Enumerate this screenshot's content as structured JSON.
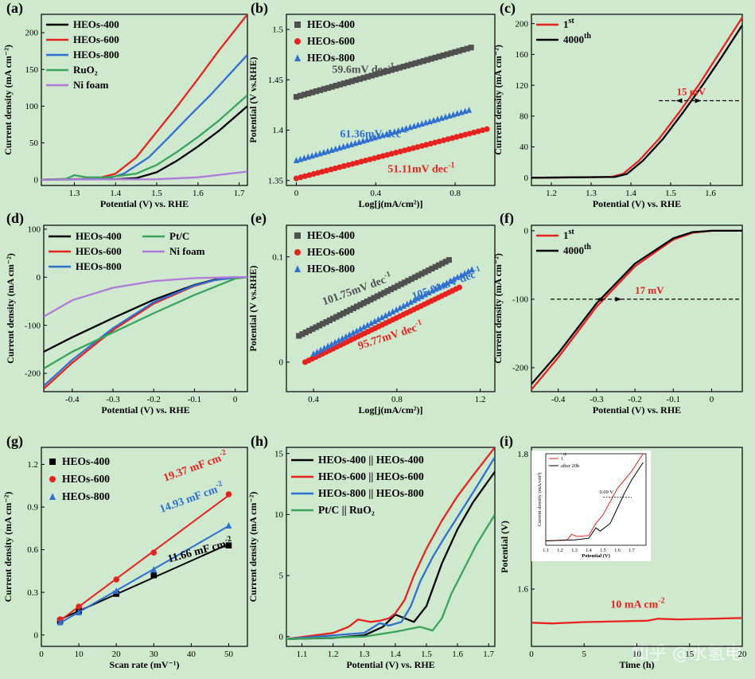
{
  "colors": {
    "background": "#cfe9cf",
    "black": "#000000",
    "red": "#e8231f",
    "blue": "#2f6fd0",
    "green": "#3aa55a",
    "purple": "#b07ad8",
    "gray": "#505050"
  },
  "chart_data": [
    {
      "id": "a",
      "panel_label": "(a)",
      "type": "line",
      "xlabel": "Potential (V) vs. RHE",
      "ylabel": "Current density (mA cm⁻²)",
      "xlim": [
        1.22,
        1.72
      ],
      "ylim": [
        -8,
        225
      ],
      "xticks": [
        1.3,
        1.4,
        1.5,
        1.6,
        1.7
      ],
      "yticks": [
        0,
        50,
        100,
        150,
        200
      ],
      "legend": {
        "position": "top-left"
      },
      "series": [
        {
          "name": "HEOs-400",
          "color": "black",
          "x": [
            1.22,
            1.4,
            1.45,
            1.5,
            1.55,
            1.6,
            1.65,
            1.72
          ],
          "y": [
            0,
            0.5,
            2,
            10,
            26,
            45,
            66,
            100
          ]
        },
        {
          "name": "HEOs-600",
          "color": "red",
          "x": [
            1.22,
            1.35,
            1.4,
            1.45,
            1.5,
            1.55,
            1.6,
            1.65,
            1.72
          ],
          "y": [
            0,
            1,
            8,
            30,
            65,
            100,
            137,
            175,
            225
          ]
        },
        {
          "name": "HEOs-800",
          "color": "blue",
          "x": [
            1.22,
            1.38,
            1.42,
            1.48,
            1.53,
            1.58,
            1.63,
            1.72
          ],
          "y": [
            0,
            1,
            8,
            30,
            58,
            87,
            115,
            170
          ]
        },
        {
          "name": "RuO₂",
          "color": "green",
          "x": [
            1.22,
            1.28,
            1.3,
            1.33,
            1.38,
            1.45,
            1.5,
            1.55,
            1.6,
            1.65,
            1.72
          ],
          "y": [
            0,
            1,
            6,
            3,
            3,
            8,
            20,
            38,
            58,
            80,
            115
          ]
        },
        {
          "name": "Ni foam",
          "color": "purple",
          "x": [
            1.22,
            1.5,
            1.6,
            1.72
          ],
          "y": [
            0,
            0.5,
            3,
            11
          ]
        }
      ]
    },
    {
      "id": "b",
      "panel_label": "(b)",
      "type": "scatter",
      "xlabel": "Log[j(mA/cm²)]",
      "ylabel": "Potential (V vs.RHE)",
      "xlim": [
        -0.05,
        1.0
      ],
      "ylim": [
        1.345,
        1.515
      ],
      "xticks": [
        0.0,
        0.4,
        0.8
      ],
      "yticks": [
        1.35,
        1.4,
        1.45,
        1.5
      ],
      "legend": {
        "position": "top-left"
      },
      "series": [
        {
          "name": "HEOs-400",
          "color": "gray",
          "marker": "square",
          "x0": 0.0,
          "y0": 1.433,
          "x1": 0.88,
          "y1": 1.482,
          "n": 45
        },
        {
          "name": "HEOs-600",
          "color": "red",
          "marker": "circle",
          "x0": 0.0,
          "y0": 1.352,
          "x1": 0.96,
          "y1": 1.401,
          "n": 45
        },
        {
          "name": "HEOs-800",
          "color": "blue",
          "marker": "triangle",
          "x0": 0.0,
          "y0": 1.37,
          "x1": 0.87,
          "y1": 1.42,
          "n": 45
        }
      ],
      "annotations": [
        {
          "text": "59.6mV dec",
          "sup": "-1",
          "color": "gray",
          "x": 0.18,
          "y": 1.457
        },
        {
          "text": "61.36mV dec",
          "sup": "-1",
          "color": "blue",
          "x": 0.22,
          "y": 1.393
        },
        {
          "text": "51.11mV dec",
          "sup": "-1",
          "color": "red",
          "x": 0.46,
          "y": 1.358
        }
      ]
    },
    {
      "id": "c",
      "panel_label": "(c)",
      "type": "line",
      "xlabel": "Potential (V) vs. RHE",
      "ylabel": "Current density (mA cm⁻²)",
      "xlim": [
        1.15,
        1.68
      ],
      "ylim": [
        -10,
        212
      ],
      "xticks": [
        1.2,
        1.3,
        1.4,
        1.5,
        1.6
      ],
      "yticks": [
        0,
        40,
        80,
        120,
        160,
        200
      ],
      "legend": {
        "position": "top-left"
      },
      "series": [
        {
          "name": "1",
          "sup": "st",
          "color": "red",
          "x": [
            1.15,
            1.35,
            1.38,
            1.42,
            1.47,
            1.52,
            1.57,
            1.62,
            1.68
          ],
          "y": [
            0,
            1,
            5,
            22,
            50,
            84,
            120,
            160,
            208
          ]
        },
        {
          "name": "4000",
          "sup": "th",
          "color": "black",
          "x": [
            1.15,
            1.36,
            1.39,
            1.43,
            1.48,
            1.53,
            1.58,
            1.63,
            1.68
          ],
          "y": [
            0,
            1,
            5,
            22,
            50,
            84,
            120,
            158,
            198
          ]
        }
      ],
      "dashed_level": 100,
      "annotations": [
        {
          "text": "15 mV",
          "color": "red",
          "x": 1.515,
          "y": 107
        }
      ]
    },
    {
      "id": "d",
      "panel_label": "(d)",
      "type": "line",
      "xlabel": "Potential (V) vs. RHE",
      "ylabel": "Current density (mA cm⁻²)",
      "xlim": [
        -0.47,
        0.03
      ],
      "ylim": [
        -238,
        108
      ],
      "xticks": [
        -0.4,
        -0.3,
        -0.2,
        -0.1,
        0.0
      ],
      "yticks": [
        100,
        0,
        -100,
        -200
      ],
      "legend": {
        "position": "top-left"
      },
      "series": [
        {
          "name": "HEOs-400",
          "color": "black",
          "x": [
            -0.47,
            -0.4,
            -0.3,
            -0.2,
            -0.1,
            -0.05,
            0.0,
            0.03
          ],
          "y": [
            -155,
            -125,
            -85,
            -47,
            -16,
            -5,
            -1,
            0
          ]
        },
        {
          "name": "HEOs-600",
          "color": "red",
          "x": [
            -0.47,
            -0.4,
            -0.3,
            -0.2,
            -0.1,
            -0.05,
            0.0,
            0.03
          ],
          "y": [
            -232,
            -178,
            -110,
            -55,
            -18,
            -6,
            -1,
            0
          ]
        },
        {
          "name": "HEOs-800",
          "color": "blue",
          "x": [
            -0.47,
            -0.4,
            -0.3,
            -0.2,
            -0.1,
            -0.05,
            0.0,
            0.03
          ],
          "y": [
            -226,
            -172,
            -106,
            -52,
            -17,
            -6,
            -1,
            0
          ]
        },
        {
          "name": "Pt/C",
          "color": "green",
          "x": [
            -0.47,
            -0.4,
            -0.3,
            -0.2,
            -0.1,
            0.0,
            0.03
          ],
          "y": [
            -190,
            -155,
            -115,
            -75,
            -37,
            -3,
            0
          ]
        },
        {
          "name": "Ni foam",
          "color": "purple",
          "x": [
            -0.47,
            -0.4,
            -0.3,
            -0.2,
            -0.1,
            0.0,
            0.03
          ],
          "y": [
            -82,
            -48,
            -22,
            -8,
            -2,
            0,
            0
          ]
        }
      ]
    },
    {
      "id": "e",
      "panel_label": "(e)",
      "type": "scatter",
      "xlabel": "Log[j(mA/cm²)]",
      "ylabel": "Potential (V vs.RHE)",
      "xlim": [
        0.27,
        1.27
      ],
      "ylim": [
        -0.028,
        0.13
      ],
      "xticks": [
        0.4,
        0.8,
        1.2
      ],
      "yticks": [
        0.0,
        0.1
      ],
      "legend": {
        "position": "top-left"
      },
      "series": [
        {
          "name": "HEOs-400",
          "color": "gray",
          "marker": "square",
          "x0": 0.33,
          "y0": 0.025,
          "x1": 1.05,
          "y1": 0.097,
          "n": 45
        },
        {
          "name": "HEOs-600",
          "color": "red",
          "marker": "circle",
          "x0": 0.36,
          "y0": 0.0,
          "x1": 1.1,
          "y1": 0.071,
          "n": 45
        },
        {
          "name": "HEOs-800",
          "color": "blue",
          "marker": "triangle",
          "x0": 0.4,
          "y0": 0.008,
          "x1": 1.16,
          "y1": 0.088,
          "n": 45
        }
      ],
      "annotations": [
        {
          "text": "101.75mV dec",
          "sup": "-1",
          "color": "gray",
          "x": 0.45,
          "y": 0.054,
          "rotate": -20
        },
        {
          "text": "105.01mV dec",
          "sup": "-1",
          "color": "blue",
          "x": 0.88,
          "y": 0.059,
          "rotate": -20
        },
        {
          "text": "95.77mV dec",
          "sup": "-1",
          "color": "red",
          "x": 0.62,
          "y": 0.012,
          "rotate": -18
        }
      ]
    },
    {
      "id": "f",
      "panel_label": "(f)",
      "type": "line",
      "xlabel": "Potential (V) vs. RHE",
      "ylabel": "Current density (mA cm⁻²)",
      "xlim": [
        -0.47,
        0.08
      ],
      "ylim": [
        -235,
        8
      ],
      "xticks": [
        -0.4,
        -0.3,
        -0.2,
        -0.1,
        0.0
      ],
      "yticks": [
        0,
        -100,
        -200
      ],
      "legend": {
        "position": "top-left"
      },
      "series": [
        {
          "name": "1",
          "sup": "st",
          "color": "red",
          "x": [
            -0.47,
            -0.4,
            -0.3,
            -0.2,
            -0.1,
            -0.05,
            0.0,
            0.08
          ],
          "y": [
            -232,
            -185,
            -111,
            -52,
            -13,
            -3,
            0,
            0
          ]
        },
        {
          "name": "4000",
          "sup": "th",
          "color": "black",
          "x": [
            -0.47,
            -0.4,
            -0.3,
            -0.2,
            -0.1,
            -0.05,
            0.0,
            0.08
          ],
          "y": [
            -224,
            -179,
            -106,
            -48,
            -11,
            -2,
            0,
            0
          ]
        }
      ],
      "dashed_level": -100,
      "annotations": [
        {
          "text": "17 mV",
          "color": "red",
          "x": -0.2,
          "y": -92
        }
      ]
    },
    {
      "id": "g",
      "panel_label": "(g)",
      "type": "scatter",
      "xlabel": "Scan rate  (mV⁻¹)",
      "ylabel": "Current density (mA cm⁻²)",
      "xlim": [
        0,
        55
      ],
      "ylim": [
        -0.08,
        1.32
      ],
      "xticks": [
        0,
        10,
        20,
        30,
        40,
        50
      ],
      "yticks": [
        0.0,
        0.3,
        0.6,
        0.9,
        1.2
      ],
      "legend": {
        "position": "top-left"
      },
      "series": [
        {
          "name": "HEOs-400",
          "color": "black",
          "marker": "square",
          "x": [
            5,
            10,
            20,
            30,
            50
          ],
          "y": [
            0.1,
            0.17,
            0.29,
            0.42,
            0.63
          ]
        },
        {
          "name": "HEOs-600",
          "color": "red",
          "marker": "circle",
          "x": [
            5,
            10,
            20,
            30,
            50
          ],
          "y": [
            0.11,
            0.2,
            0.39,
            0.58,
            0.99
          ]
        },
        {
          "name": "HEOs-800",
          "color": "blue",
          "marker": "triangle",
          "x": [
            5,
            10,
            20,
            30,
            50
          ],
          "y": [
            0.09,
            0.16,
            0.31,
            0.46,
            0.77
          ]
        }
      ],
      "annotations": [
        {
          "text": "19.37 mF cm",
          "sup": "-2",
          "color": "red",
          "x": 33,
          "y": 1.08,
          "rotate": -20
        },
        {
          "text": "14.93 mF cm",
          "sup": "-2",
          "color": "blue",
          "x": 32,
          "y": 0.86,
          "rotate": -20
        },
        {
          "text": "11.66 mF cm",
          "sup": "-2",
          "color": "black",
          "x": 34,
          "y": 0.51,
          "rotate": -15
        }
      ]
    },
    {
      "id": "h",
      "panel_label": "(h)",
      "type": "line",
      "xlabel": "Potential (V) vs. RHE",
      "ylabel": "Current density (mA cm⁻²)",
      "xlim": [
        1.05,
        1.72
      ],
      "ylim": [
        -0.8,
        15.5
      ],
      "xticks": [
        1.1,
        1.2,
        1.3,
        1.4,
        1.5,
        1.6,
        1.7
      ],
      "yticks": [
        0,
        5,
        10,
        15
      ],
      "legend": {
        "position": "top-left"
      },
      "series": [
        {
          "name": "HEOs-400 || HEOs-400",
          "color": "black",
          "x": [
            1.05,
            1.2,
            1.3,
            1.36,
            1.4,
            1.43,
            1.46,
            1.5,
            1.55,
            1.6,
            1.65,
            1.72
          ],
          "y": [
            -0.2,
            -0.1,
            0.1,
            0.8,
            1.8,
            1.5,
            1.2,
            2.5,
            6,
            8.8,
            11,
            13.5
          ]
        },
        {
          "name": "HEOs-600 || HEOs-600",
          "color": "red",
          "x": [
            1.05,
            1.2,
            1.25,
            1.28,
            1.32,
            1.35,
            1.38,
            1.4,
            1.43,
            1.46,
            1.5,
            1.55,
            1.6,
            1.65,
            1.72
          ],
          "y": [
            -0.2,
            0.3,
            0.8,
            1.4,
            1.2,
            1.3,
            1.5,
            1.9,
            3,
            5,
            7.2,
            9.5,
            11.5,
            13.2,
            15.5
          ]
        },
        {
          "name": "HEOs-800 || HEOs-800",
          "color": "blue",
          "x": [
            1.05,
            1.3,
            1.35,
            1.38,
            1.42,
            1.45,
            1.48,
            1.52,
            1.56,
            1.6,
            1.65,
            1.72
          ],
          "y": [
            -0.2,
            0.3,
            1.1,
            0.9,
            1.2,
            2.5,
            4.5,
            6.5,
            8.2,
            9.8,
            11.8,
            14.7
          ]
        },
        {
          "name": "Pt/C || RuO₂",
          "color": "green",
          "x": [
            1.05,
            1.3,
            1.4,
            1.48,
            1.52,
            1.55,
            1.58,
            1.62,
            1.66,
            1.72
          ],
          "y": [
            -0.2,
            0,
            0.4,
            0.8,
            0.5,
            1.5,
            3.5,
            5.5,
            7.5,
            10
          ]
        }
      ]
    },
    {
      "id": "i",
      "panel_label": "(i)",
      "type": "line",
      "xlabel": "Time (h)",
      "ylabel": "Potential (V)",
      "xlim": [
        0,
        20
      ],
      "ylim": [
        1.515,
        1.81
      ],
      "xticks": [
        0,
        5,
        10,
        15,
        20
      ],
      "yticks": [
        1.6,
        1.8
      ],
      "series": [
        {
          "name": "10 mA cm⁻²",
          "color": "red",
          "x": [
            0,
            2,
            5,
            8,
            11,
            12,
            14,
            17,
            20
          ],
          "y": [
            1.55,
            1.549,
            1.551,
            1.552,
            1.553,
            1.556,
            1.555,
            1.556,
            1.557
          ]
        }
      ],
      "annotations": [
        {
          "text": "10 mA cm",
          "sup": "-2",
          "color": "red",
          "x": 7.5,
          "y": 1.572
        }
      ],
      "inset": {
        "xlabel": "Potential (V)",
        "ylabel": "Current density (mA/cm²)",
        "xlim": [
          1.1,
          1.8
        ],
        "ylim": [
          -2,
          40
        ],
        "xticks": [
          1.1,
          1.2,
          1.3,
          1.4,
          1.5,
          1.6,
          1.7
        ],
        "yticks": [],
        "annotation": "0.09 V",
        "series": [
          {
            "name": "1",
            "sup": "th",
            "color": "red",
            "x": [
              1.1,
              1.25,
              1.28,
              1.32,
              1.4,
              1.45,
              1.5,
              1.55,
              1.6,
              1.7,
              1.78
            ],
            "y": [
              0,
              0.5,
              3,
              2,
              2.5,
              8,
              12,
              18,
              24,
              32,
              40
            ]
          },
          {
            "name": "after 20h",
            "color": "black",
            "x": [
              1.1,
              1.3,
              1.4,
              1.45,
              1.48,
              1.55,
              1.6,
              1.65,
              1.7,
              1.78
            ],
            "y": [
              0,
              0.5,
              1.2,
              6,
              4.5,
              8,
              15,
              22,
              28,
              36
            ]
          }
        ]
      }
    }
  ],
  "watermark": {
    "text": "知乎 @水氢电"
  }
}
